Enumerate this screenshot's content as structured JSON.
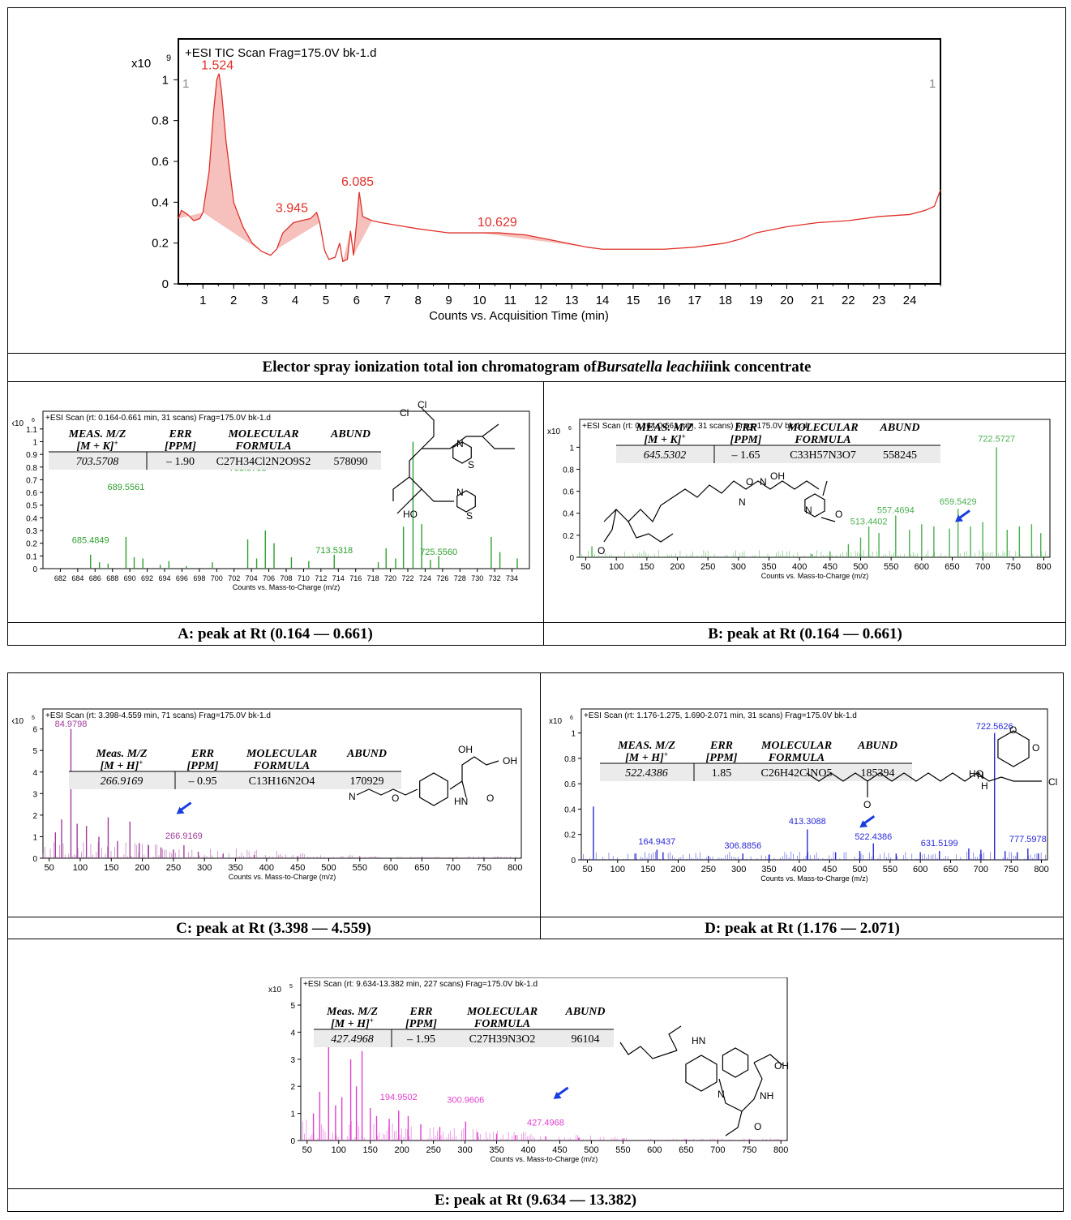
{
  "tic": {
    "header": "+ESI TIC Scan Frag=175.0V bk-1.d",
    "exponent_base": "x10",
    "exponent": "9",
    "xlabel": "Counts vs. Acquisition Time (min)",
    "corner_left": "1",
    "corner_right": "1",
    "peak_labels": [
      {
        "text": "1.524",
        "x": 1.524,
        "y": 1.02
      },
      {
        "text": "3.945",
        "x": 3.945,
        "y": 0.32
      },
      {
        "text": "6.085",
        "x": 6.085,
        "y": 0.45
      },
      {
        "text": "10.629",
        "x": 10.629,
        "y": 0.25
      }
    ],
    "caption_pre": "Elector spray ionization total ion chromatogram of ",
    "caption_italic": "Bursatella leachii",
    "caption_post": " ink concentrate"
  },
  "chart_data": [
    {
      "type": "line",
      "title": "+ESI TIC Scan Frag=175.0V bk-1.d",
      "xlabel": "Counts vs. Acquisition Time (min)",
      "ylabel": "",
      "xlim": [
        0.2,
        25
      ],
      "ylim": [
        0,
        1.2
      ],
      "xticks": [
        1,
        2,
        3,
        4,
        5,
        6,
        7,
        8,
        9,
        10,
        11,
        12,
        13,
        14,
        15,
        16,
        17,
        18,
        19,
        20,
        21,
        22,
        23,
        24
      ],
      "yticks": [
        0,
        0.2,
        0.4,
        0.6,
        0.8,
        1
      ],
      "color": "#e0302a",
      "x": [
        0.2,
        0.3,
        0.5,
        0.7,
        0.9,
        1.0,
        1.2,
        1.35,
        1.45,
        1.524,
        1.6,
        1.75,
        2.0,
        2.3,
        2.6,
        2.9,
        3.2,
        3.4,
        3.6,
        3.945,
        4.2,
        4.5,
        4.7,
        4.8,
        4.95,
        5.0,
        5.1,
        5.3,
        5.45,
        5.55,
        5.7,
        5.8,
        5.9,
        6.0,
        6.085,
        6.2,
        6.5,
        6.8,
        7.2,
        8,
        9,
        10,
        10.629,
        11.5,
        12.5,
        13.5,
        14,
        15,
        16,
        17,
        18,
        18.5,
        19,
        20,
        21,
        22,
        23,
        24,
        24.5,
        24.8,
        25
      ],
      "y": [
        0.32,
        0.36,
        0.34,
        0.31,
        0.32,
        0.35,
        0.55,
        0.85,
        1.0,
        1.03,
        0.95,
        0.7,
        0.4,
        0.28,
        0.2,
        0.16,
        0.14,
        0.17,
        0.25,
        0.3,
        0.31,
        0.32,
        0.35,
        0.3,
        0.17,
        0.15,
        0.12,
        0.13,
        0.2,
        0.11,
        0.12,
        0.26,
        0.14,
        0.3,
        0.45,
        0.33,
        0.31,
        0.3,
        0.29,
        0.27,
        0.25,
        0.25,
        0.25,
        0.24,
        0.21,
        0.18,
        0.17,
        0.17,
        0.17,
        0.18,
        0.2,
        0.22,
        0.25,
        0.28,
        0.3,
        0.31,
        0.33,
        0.34,
        0.36,
        0.38,
        0.46
      ]
    },
    {
      "type": "bar",
      "title": "+ESI Scan (rt: 0.164-0.661 min, 31 scans) Frag=175.0V bk-1.d",
      "xlabel": "Counts vs. Mass-to-Charge (m/z)",
      "xlim": [
        680,
        736
      ],
      "ylim": [
        0,
        1.15
      ],
      "xticks": [
        682,
        684,
        686,
        688,
        690,
        692,
        694,
        696,
        698,
        700,
        702,
        704,
        706,
        708,
        710,
        712,
        714,
        716,
        718,
        720,
        722,
        724,
        726,
        728,
        730,
        732,
        734
      ],
      "yticks": [
        0,
        0.1,
        0.2,
        0.3,
        0.4,
        0.5,
        0.6,
        0.7,
        0.8,
        0.9,
        1,
        1.1
      ],
      "color": "#2e9e2e",
      "x": [
        685.48,
        686.5,
        687.5,
        689.56,
        690.5,
        691.5,
        693.5,
        694.5,
        696.5,
        699.5,
        703.57,
        704.6,
        705.6,
        706.6,
        708.6,
        710.6,
        713.53,
        718.6,
        719.5,
        720.6,
        721.5,
        722.6,
        723.6,
        724.6,
        725.56,
        731.6,
        732.6,
        734.6
      ],
      "y": [
        0.11,
        0.05,
        0.04,
        0.25,
        0.09,
        0.08,
        0.03,
        0.06,
        0.02,
        0.05,
        0.23,
        0.08,
        0.3,
        0.2,
        0.09,
        0.06,
        0.11,
        0.05,
        0.16,
        0.08,
        0.33,
        1.0,
        0.35,
        0.07,
        0.1,
        0.25,
        0.13,
        0.08
      ]
    },
    {
      "type": "bar",
      "title": "+ESI Scan (rt: 0.164-0.661 min, 31 scans) Frag=175.0V bk-1.d",
      "xlabel": "Counts vs. Mass-to-Charge (m/z)",
      "xlim": [
        40,
        810
      ],
      "ylim": [
        0,
        1.15
      ],
      "xticks": [
        50,
        100,
        150,
        200,
        250,
        300,
        350,
        400,
        450,
        500,
        550,
        600,
        650,
        700,
        750,
        800
      ],
      "yticks": [
        0,
        0.2,
        0.4,
        0.6,
        0.8,
        1
      ],
      "color": "#4caf50",
      "x": [
        60,
        420,
        450,
        480,
        500,
        513.44,
        530,
        557.47,
        580,
        600,
        620,
        645.53,
        659.54,
        680,
        700,
        722.57,
        740,
        760,
        780,
        795
      ],
      "y": [
        0.1,
        0.03,
        0.05,
        0.12,
        0.18,
        0.28,
        0.22,
        0.38,
        0.25,
        0.3,
        0.28,
        0.26,
        0.44,
        0.28,
        0.32,
        1.0,
        0.25,
        0.28,
        0.3,
        0.22
      ]
    },
    {
      "type": "bar",
      "title": "+ESI Scan (rt: 3.398-4.559 min, 71 scans) Frag=175.0V bk-1.d",
      "xlabel": "Counts vs. Mass-to-Charge (m/z)",
      "xlim": [
        40,
        810
      ],
      "ylim": [
        0,
        6.4
      ],
      "xticks": [
        50,
        100,
        150,
        200,
        250,
        300,
        350,
        400,
        450,
        500,
        550,
        600,
        650,
        700,
        750,
        800
      ],
      "yticks": [
        0,
        1,
        2,
        3,
        4,
        5,
        6
      ],
      "color": "#a03c9a",
      "x": [
        60,
        70,
        84.98,
        95,
        110,
        130,
        145,
        160,
        180,
        195,
        210,
        230,
        250,
        266.92,
        290,
        330,
        380,
        450,
        550,
        650,
        750
      ],
      "y": [
        1.2,
        1.8,
        6.0,
        1.6,
        1.5,
        1.0,
        1.9,
        0.8,
        1.7,
        0.7,
        0.6,
        0.5,
        0.4,
        0.6,
        0.3,
        0.2,
        0.15,
        0.1,
        0.08,
        0.06,
        0.05
      ]
    },
    {
      "type": "bar",
      "title": "+ESI Scan (rt: 1.176-1.275, 1.690-2.071 min, 31 scans) Frag=175.0V bk-1.d",
      "xlabel": "Counts vs. Mass-to-Charge (m/z)",
      "xlim": [
        40,
        810
      ],
      "ylim": [
        0,
        1.1
      ],
      "xticks": [
        50,
        100,
        150,
        200,
        250,
        300,
        350,
        400,
        450,
        500,
        550,
        600,
        650,
        700,
        750,
        800
      ],
      "yticks": [
        0,
        0.2,
        0.4,
        0.6,
        0.8,
        1
      ],
      "color": "#2a2ad6",
      "x": [
        60,
        130,
        164.94,
        175,
        250,
        306.89,
        350,
        413.31,
        460,
        500,
        522.44,
        560,
        600,
        631.52,
        680,
        700,
        722.56,
        740,
        760,
        777.6,
        795
      ],
      "y": [
        0.42,
        0.05,
        0.08,
        0.06,
        0.03,
        0.05,
        0.04,
        0.24,
        0.06,
        0.07,
        0.13,
        0.05,
        0.06,
        0.07,
        0.09,
        0.08,
        1.0,
        0.07,
        0.06,
        0.09,
        0.05
      ]
    },
    {
      "type": "bar",
      "title": "+ESI Scan (rt: 9.634-13.382 min, 227 scans) Frag=175.0V bk-1.d",
      "xlabel": "Counts vs. Mass-to-Charge (m/z)",
      "xlim": [
        40,
        810
      ],
      "ylim": [
        0,
        5.6
      ],
      "xticks": [
        50,
        100,
        150,
        200,
        250,
        300,
        350,
        400,
        450,
        500,
        550,
        600,
        650,
        700,
        750,
        800
      ],
      "yticks": [
        0,
        1,
        2,
        3,
        4,
        5
      ],
      "color": "#e040d0",
      "x": [
        60,
        70,
        84,
        95,
        105,
        119,
        128,
        137,
        150,
        160,
        180,
        194.95,
        210,
        230,
        260,
        300.96,
        320,
        350,
        380,
        427.5,
        480,
        550,
        650,
        750
      ],
      "y": [
        1.0,
        1.8,
        3.5,
        1.3,
        1.6,
        3.0,
        2.0,
        3.3,
        1.2,
        0.9,
        0.8,
        1.1,
        0.9,
        0.6,
        0.5,
        0.7,
        0.3,
        0.25,
        0.2,
        0.15,
        0.1,
        0.08,
        0.06,
        0.05
      ]
    }
  ],
  "panels": [
    {
      "id": "A",
      "header": "+ESI Scan (rt: 0.164-0.661 min, 31 scans) Frag=175.0V bk-1.d",
      "exp_base": "x10",
      "exp": "6",
      "xlabel": "Counts vs. Mass-to-Charge (m/z)",
      "labels": [
        {
          "text": "689.5561",
          "x": 689.56,
          "y": 0.62
        },
        {
          "text": "685.4849",
          "x": 685.48,
          "y": 0.2
        },
        {
          "text": "703.5708",
          "x": 703.57,
          "y": 0.77
        },
        {
          "text": "713.5318",
          "x": 713.53,
          "y": 0.12
        },
        {
          "text": "725.5560",
          "x": 725.56,
          "y": 0.11
        }
      ],
      "arrow": {
        "x": 709.5,
        "y": 0.82
      },
      "table": {
        "h1": "MEAS. M/Z",
        "h1b": "[M + K]",
        "h1sup": "+",
        "h2": "ERR",
        "h2b": "[PPM]",
        "h3": "MOLECULAR",
        "h3b": "FORMULA",
        "h4": "ABUND",
        "v1": "703.5708",
        "v2": "– 1.90",
        "v3": "C27H34Cl2N2O9S2",
        "v4": "578090"
      },
      "caption": "A: peak at Rt (0.164 — 0.661)"
    },
    {
      "id": "B",
      "header": "+ESI Scan (rt: 0.164-0.661 min, 31 scans) Frag=175.0V bk-1.d",
      "exp_base": "x10",
      "exp": "6",
      "xlabel": "Counts vs. Mass-to-Charge (m/z)",
      "labels": [
        {
          "text": "722.5727",
          "x": 722.57,
          "y": 1.05
        },
        {
          "text": "659.5429",
          "x": 659.54,
          "y": 0.48
        },
        {
          "text": "557.4694",
          "x": 557.47,
          "y": 0.4
        },
        {
          "text": "513.4402",
          "x": 513.44,
          "y": 0.3
        }
      ],
      "arrow": {
        "x": 660,
        "y": 0.35
      },
      "table": {
        "h1": "MEAS. M/Z",
        "h1b": "[M + K]",
        "h1sup": "+",
        "h2": "ERR",
        "h2b": "[PPM]",
        "h3": "MOLECULAR",
        "h3b": "FORMULA",
        "h4": "ABUND",
        "v1": "645.5302",
        "v2": "– 1.65",
        "v3": "C33H57N3O7",
        "v4": "558245"
      },
      "caption": "B: peak at Rt (0.164 — 0.661)"
    },
    {
      "id": "C",
      "header": "+ESI Scan (rt: 3.398-4.559 min, 71 scans) Frag=175.0V bk-1.d",
      "exp_base": "x10",
      "exp": "5",
      "xlabel": "Counts vs. Mass-to-Charge (m/z)",
      "labels": [
        {
          "text": "84.9798",
          "x": 84.98,
          "y": 6.1
        },
        {
          "text": "266.9169",
          "x": 266.92,
          "y": 0.9
        }
      ],
      "arrow": {
        "x": 260,
        "y": 2.2
      },
      "table": {
        "h1": "Meas. M/Z",
        "h1b": "[M + H]",
        "h1sup": "+",
        "h2": "ERR",
        "h2b": "[PPM]",
        "h3": "MOLECULAR",
        "h3b": "FORMULA",
        "h4": "ABUND",
        "v1": "266.9169",
        "v2": "– 0.95",
        "v3": "C13H16N2O4",
        "v4": "170929"
      },
      "caption": "C: peak at Rt (3.398 — 4.559)"
    },
    {
      "id": "D",
      "header": "+ESI Scan (rt: 1.176-1.275, 1.690-2.071 min, 31 scans) Frag=175.0V bk-1.d",
      "exp_base": "x10",
      "exp": "6",
      "xlabel": "Counts vs. Mass-to-Charge (m/z)",
      "labels": [
        {
          "text": "722.5626",
          "x": 722.56,
          "y": 1.03
        },
        {
          "text": "413.3088",
          "x": 413.31,
          "y": 0.28
        },
        {
          "text": "522.4386",
          "x": 522.44,
          "y": 0.16
        },
        {
          "text": "164.9437",
          "x": 164.94,
          "y": 0.12
        },
        {
          "text": "306.8856",
          "x": 306.89,
          "y": 0.09
        },
        {
          "text": "631.5199",
          "x": 631.52,
          "y": 0.11
        },
        {
          "text": "777.5978",
          "x": 777.6,
          "y": 0.14
        }
      ],
      "arrow": {
        "x": 505,
        "y": 0.28
      },
      "table": {
        "h1": "MEAS. M/Z",
        "h1b": "[M + H]",
        "h1sup": "+",
        "h2": "ERR",
        "h2b": "[PPM]",
        "h3": "MOLECULAR",
        "h3b": "FORMULA",
        "h4": "ABUND",
        "v1": "522.4386",
        "v2": "1.85",
        "v3": "C26H42ClNO5",
        "v4": "185394"
      },
      "caption": "D: peak at Rt (1.176 — 2.071)"
    },
    {
      "id": "E",
      "header": "+ESI Scan (rt: 9.634-13.382 min, 227 scans) Frag=175.0V bk-1.d",
      "exp_base": "x10",
      "exp": "5",
      "xlabel": "Counts vs. Mass-to-Charge (m/z)",
      "labels": [
        {
          "text": "194.9502",
          "x": 194.95,
          "y": 1.5
        },
        {
          "text": "300.9606",
          "x": 300.96,
          "y": 1.4
        },
        {
          "text": "427.4968",
          "x": 427.5,
          "y": 0.55
        }
      ],
      "arrow": {
        "x": 445,
        "y": 1.65
      },
      "table": {
        "h1": "Meas. M/Z",
        "h1b": "[M + H]",
        "h1sup": "+",
        "h2": "ERR",
        "h2b": "[PPM]",
        "h3": "MOLECULAR",
        "h3b": "FORMULA",
        "h4": "ABUND",
        "v1": "427.4968",
        "v2": "– 1.95",
        "v3": "C27H39N3O2",
        "v4": "96104"
      },
      "caption": "E: peak at Rt (9.634 — 13.382)"
    }
  ]
}
